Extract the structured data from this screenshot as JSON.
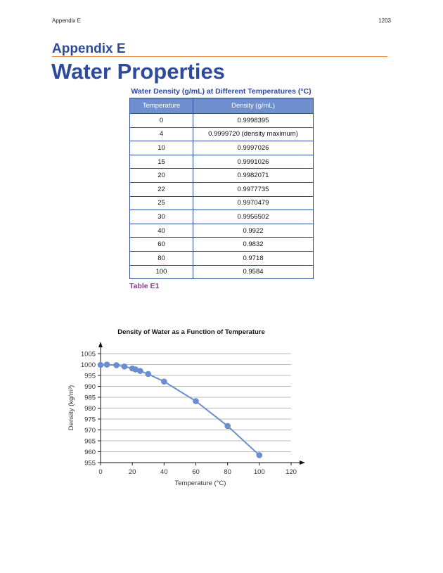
{
  "header": {
    "left": "Appendix E",
    "page_number": "1203"
  },
  "appendix_heading": "Appendix E",
  "title": "Water Properties",
  "table": {
    "caption": "Water Density (g/mL) at Different Temperatures (°C)",
    "columns": [
      "Temperature",
      "Density (g/mL)"
    ],
    "rows": [
      [
        "0",
        "0.9998395"
      ],
      [
        "4",
        "0.9999720 (density maximum)"
      ],
      [
        "10",
        "0.9997026"
      ],
      [
        "15",
        "0.9991026"
      ],
      [
        "20",
        "0.9982071"
      ],
      [
        "22",
        "0.9977735"
      ],
      [
        "25",
        "0.9970479"
      ],
      [
        "30",
        "0.9956502"
      ],
      [
        "40",
        "0.9922"
      ],
      [
        "60",
        "0.9832"
      ],
      [
        "80",
        "0.9718"
      ],
      [
        "100",
        "0.9584"
      ]
    ],
    "label": "Table E1"
  },
  "chart_data": {
    "type": "line",
    "title": "Density of Water as a Function of Temperature",
    "xlabel": "Temperature (°C)",
    "ylabel": "Density (kg/m³)",
    "xlim": [
      0,
      120
    ],
    "ylim": [
      955,
      1005
    ],
    "xticks": [
      0,
      20,
      40,
      60,
      80,
      100,
      120
    ],
    "yticks": [
      955,
      960,
      965,
      970,
      975,
      980,
      985,
      990,
      995,
      1000,
      1005
    ],
    "grid": true,
    "color": "#6a8fd0",
    "x": [
      0,
      4,
      10,
      15,
      20,
      22,
      25,
      30,
      40,
      60,
      80,
      100
    ],
    "y": [
      999.84,
      999.97,
      999.7,
      999.1,
      998.21,
      997.77,
      997.05,
      995.65,
      992.2,
      983.2,
      971.8,
      958.4
    ]
  }
}
